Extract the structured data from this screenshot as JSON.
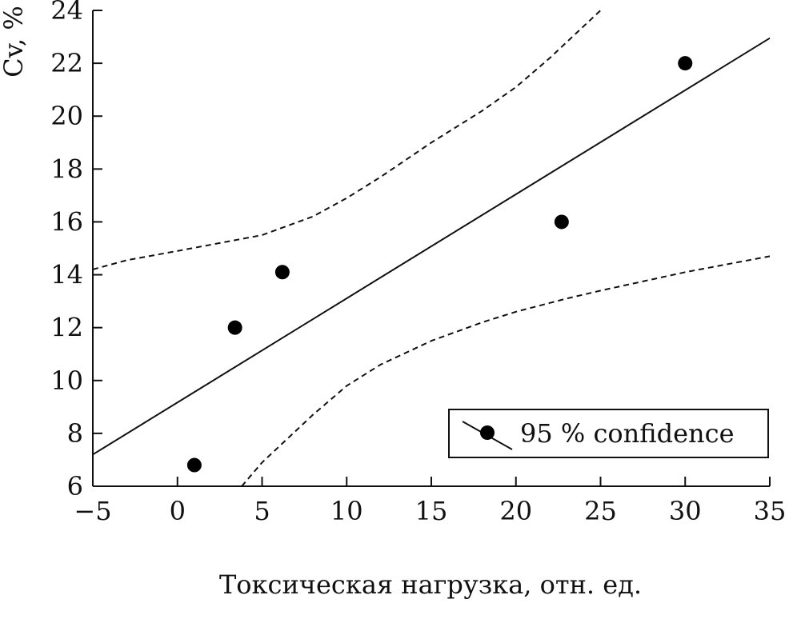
{
  "chart_data": {
    "type": "scatter",
    "title": "",
    "xlabel": "Токсическая нагрузка, отн. ед.",
    "ylabel": "Cv, %",
    "xlim": [
      -5,
      35
    ],
    "ylim": [
      6,
      24
    ],
    "x_ticks": [
      -5,
      0,
      5,
      10,
      15,
      20,
      25,
      30,
      35
    ],
    "x_tick_labels": [
      "−5",
      "0",
      "5",
      "10",
      "15",
      "20",
      "25",
      "30",
      "35"
    ],
    "y_ticks": [
      6,
      8,
      10,
      12,
      14,
      16,
      18,
      20,
      22,
      24
    ],
    "y_tick_labels": [
      "6",
      "8",
      "10",
      "12",
      "14",
      "16",
      "18",
      "20",
      "22",
      "24"
    ],
    "grid": false,
    "legend_position": "bottom-right",
    "series": [
      {
        "kind": "points",
        "x": [
          1.0,
          3.4,
          6.2,
          22.7,
          30.0
        ],
        "y": [
          6.8,
          12.0,
          14.1,
          16.0,
          22.0
        ]
      },
      {
        "kind": "regression-line",
        "x": [
          -5,
          35
        ],
        "y": [
          7.2,
          22.95
        ]
      },
      {
        "kind": "upper-confidence-band",
        "x": [
          -5,
          -3,
          0,
          5,
          8,
          10,
          12,
          15,
          18,
          20,
          22,
          25
        ],
        "y": [
          14.2,
          14.55,
          14.9,
          15.5,
          16.2,
          16.9,
          17.7,
          19.0,
          20.2,
          21.1,
          22.2,
          24.0
        ]
      },
      {
        "kind": "lower-confidence-band",
        "x": [
          3.8,
          5,
          8,
          10,
          12,
          15,
          18,
          20,
          23,
          25,
          30,
          35
        ],
        "y": [
          6.0,
          6.9,
          8.7,
          9.8,
          10.6,
          11.5,
          12.2,
          12.6,
          13.1,
          13.4,
          14.1,
          14.7
        ]
      }
    ],
    "legend": {
      "label": "95 % confidence"
    }
  }
}
